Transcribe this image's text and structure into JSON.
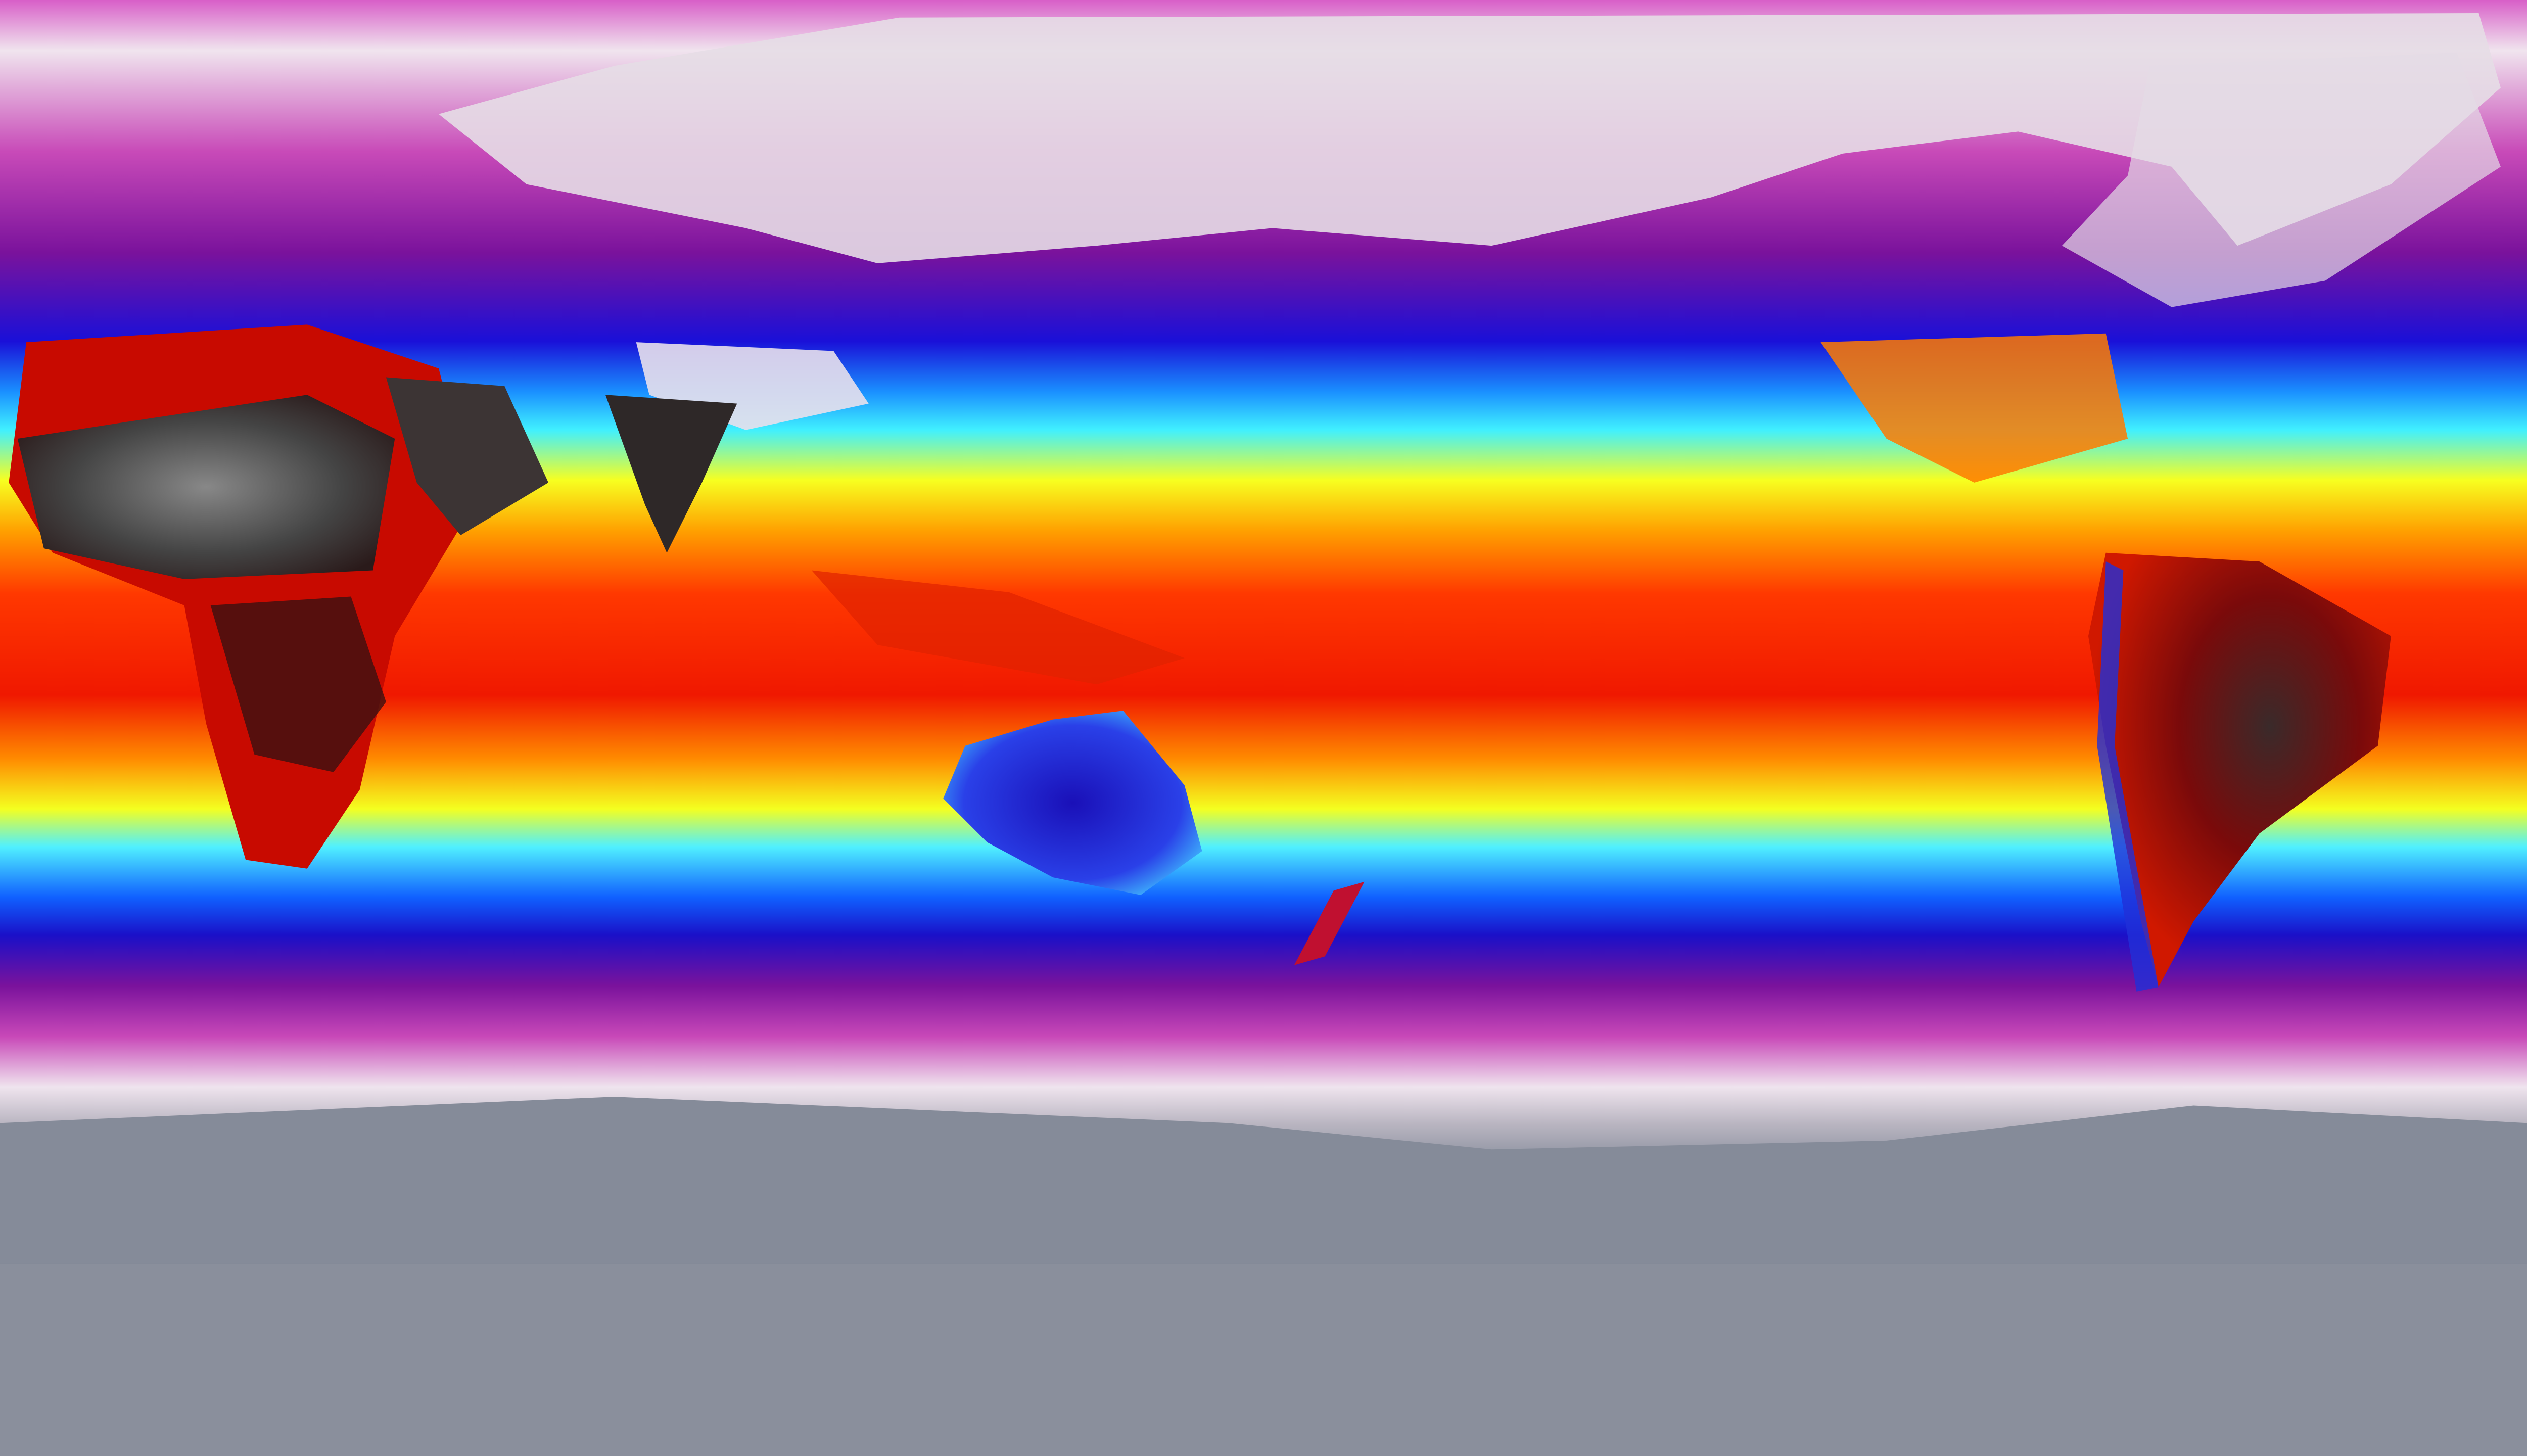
{
  "map": {
    "projection": "equirectangular",
    "type": "global surface temperature field",
    "colormap": [
      "#6e7584",
      "#f1e6ee",
      "#c63fb8",
      "#8a1aa0",
      "#1a10d8",
      "#0a5cff",
      "#33e8ff",
      "#f7ff1a",
      "#ffa200",
      "#ff3a00",
      "#c00000",
      "#3a0a0a",
      "#5a5a5a"
    ],
    "colors": {
      "polar_ice": "#8a909e",
      "cold": "#c63fb8",
      "cool": "#1a2ae8",
      "mild": "#33e8ff",
      "warm": "#f7ff1a",
      "hot": "#ff3a00",
      "hottest": "#3a3232"
    }
  }
}
